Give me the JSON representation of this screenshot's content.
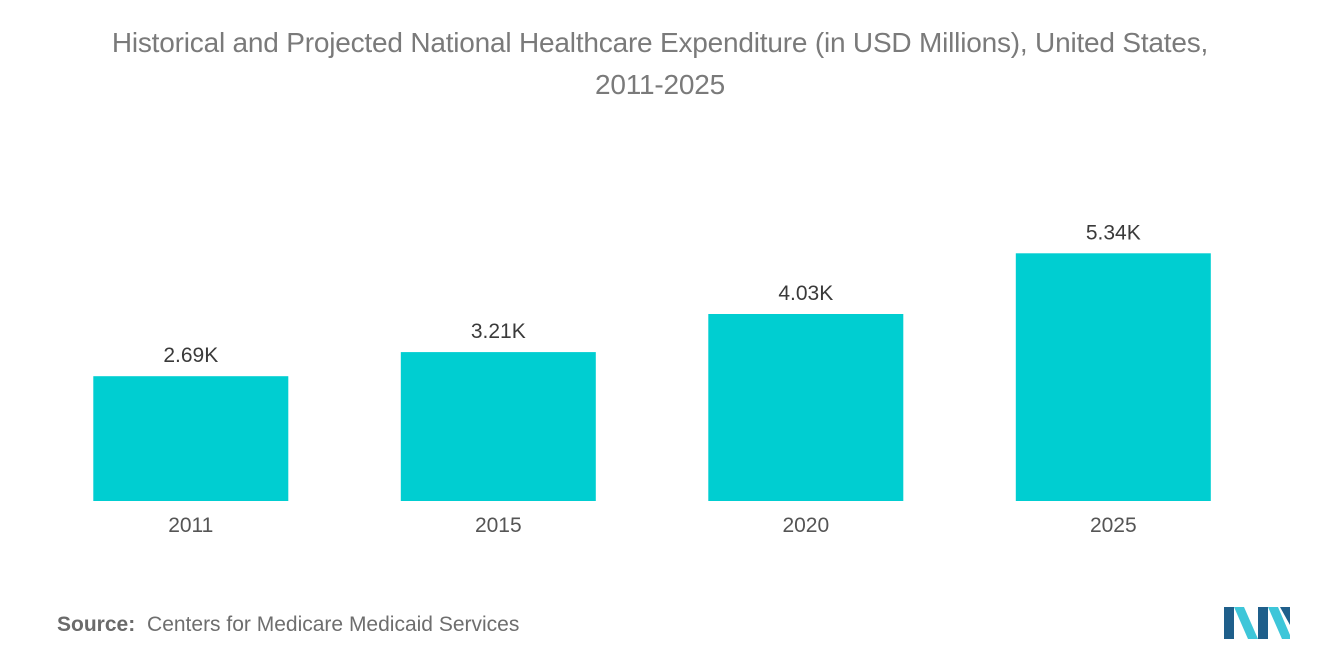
{
  "title": {
    "line1": "Historical and Projected National Healthcare Expenditure (in USD Millions), United States,",
    "line2": "2011-2025"
  },
  "source": {
    "label": "Source:",
    "text": "Centers for Medicare Medicaid Services"
  },
  "colors": {
    "bar": "#00ced1",
    "title": "#7a7a7a",
    "tick": "#555555",
    "data_label": "#3a3a3a",
    "logo_dark": "#1f5f8b",
    "logo_light": "#3ec6d9"
  },
  "logo": {
    "icon": "mordor-intelligence-logo-icon"
  },
  "chart_data": {
    "type": "bar",
    "title": "Historical and Projected National Healthcare Expenditure (in USD Millions), United States, 2011-2025",
    "xlabel": "",
    "ylabel": "",
    "categories": [
      "2011",
      "2015",
      "2020",
      "2025"
    ],
    "values": [
      2690,
      3210,
      4030,
      5340
    ],
    "data_labels": [
      "2.69K",
      "3.21K",
      "4.03K",
      "5.34K"
    ],
    "grid": false,
    "legend": "none"
  }
}
